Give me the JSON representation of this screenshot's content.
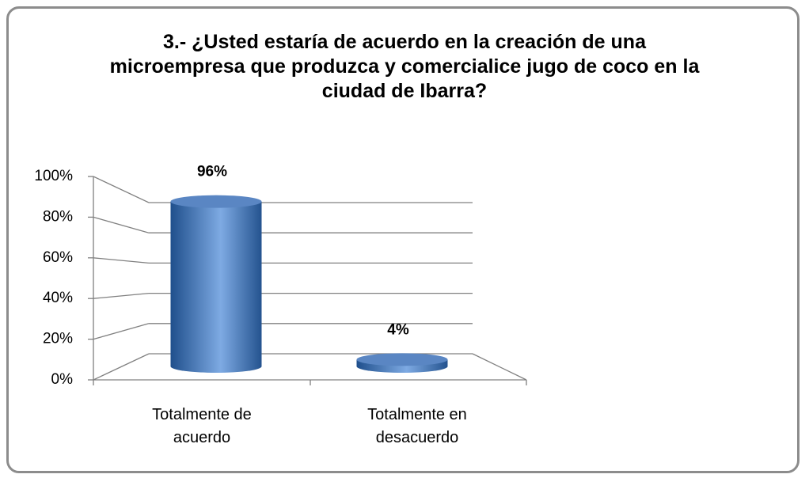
{
  "chart_data": {
    "type": "bar3d",
    "title": "3.- ¿Usted estaría de acuerdo en la creación de una microempresa que produzca y comercialice jugo de coco en la ciudad de Ibarra?",
    "categories": [
      "Totalmente de acuerdo",
      "Totalmente en desacuerdo"
    ],
    "values": [
      96,
      4
    ],
    "value_labels": [
      "96%",
      "4%"
    ],
    "color": "#4a7bbd",
    "ylim": [
      0,
      100
    ],
    "yticks": [
      {
        "value": 0,
        "label": "0%"
      },
      {
        "value": 20,
        "label": "20%"
      },
      {
        "value": 40,
        "label": "40%"
      },
      {
        "value": 60,
        "label": "60%"
      },
      {
        "value": 80,
        "label": "80%"
      },
      {
        "value": 100,
        "label": "100%"
      }
    ],
    "grid": true
  }
}
